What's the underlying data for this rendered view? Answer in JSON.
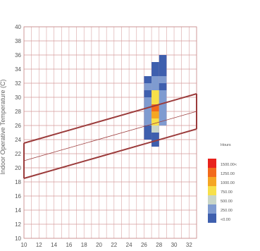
{
  "chart_data": {
    "type": "heatmap",
    "title": "",
    "xlabel": "",
    "ylabel": "Indoor Operative Temperature (C)",
    "xlim": [
      10,
      33
    ],
    "ylim": [
      10,
      40
    ],
    "x_ticks": [
      "10",
      "12",
      "14",
      "16",
      "18",
      "20",
      "22",
      "24",
      "26",
      "28",
      "30",
      "32"
    ],
    "y_ticks": [
      "10",
      "12",
      "14",
      "16",
      "18",
      "20",
      "22",
      "24",
      "26",
      "28",
      "30",
      "32",
      "34",
      "36",
      "38",
      "40"
    ],
    "grid": true,
    "legend": {
      "title": "Hours",
      "position": "bottom-right",
      "entries": [
        {
          "label": "1500.00<",
          "color": "#e8221c"
        },
        {
          "label": "1250.00",
          "color": "#f26a1b"
        },
        {
          "label": "1000.00",
          "color": "#f5a623"
        },
        {
          "label": "750.00",
          "color": "#f7e04a"
        },
        {
          "label": "500.00",
          "color": "#c9d6c8"
        },
        {
          "label": "250.00",
          "color": "#7f9bd0"
        },
        {
          "label": "<0.00",
          "color": "#3e5fae"
        }
      ]
    },
    "comfort_band": {
      "outer_lower": [
        [
          10,
          18.5
        ],
        [
          33,
          25.5
        ]
      ],
      "outer_upper": [
        [
          10,
          23.5
        ],
        [
          33,
          30.5
        ]
      ],
      "center_line": [
        [
          10,
          21
        ],
        [
          33,
          28
        ]
      ]
    },
    "cells": [
      {
        "x": 26,
        "y": 24,
        "v": 0
      },
      {
        "x": 26,
        "y": 25,
        "v": 0
      },
      {
        "x": 26,
        "y": 26,
        "v": 1
      },
      {
        "x": 26,
        "y": 27,
        "v": 1
      },
      {
        "x": 26,
        "y": 28,
        "v": 1
      },
      {
        "x": 26,
        "y": 29,
        "v": 1
      },
      {
        "x": 26,
        "y": 30,
        "v": 0
      },
      {
        "x": 26,
        "y": 31,
        "v": 1
      },
      {
        "x": 26,
        "y": 32,
        "v": 0
      },
      {
        "x": 27,
        "y": 23,
        "v": 0
      },
      {
        "x": 27,
        "y": 24,
        "v": 0
      },
      {
        "x": 27,
        "y": 25,
        "v": 2
      },
      {
        "x": 27,
        "y": 26,
        "v": 3
      },
      {
        "x": 27,
        "y": 27,
        "v": 4
      },
      {
        "x": 27,
        "y": 28,
        "v": 5
      },
      {
        "x": 27,
        "y": 29,
        "v": 3
      },
      {
        "x": 27,
        "y": 30,
        "v": 3
      },
      {
        "x": 27,
        "y": 31,
        "v": 1
      },
      {
        "x": 27,
        "y": 32,
        "v": 1
      },
      {
        "x": 27,
        "y": 33,
        "v": 0
      },
      {
        "x": 27,
        "y": 34,
        "v": 0
      },
      {
        "x": 28,
        "y": 26,
        "v": 1
      },
      {
        "x": 28,
        "y": 27,
        "v": 1
      },
      {
        "x": 28,
        "y": 28,
        "v": 1
      },
      {
        "x": 28,
        "y": 29,
        "v": 1
      },
      {
        "x": 28,
        "y": 30,
        "v": 1
      },
      {
        "x": 28,
        "y": 31,
        "v": 0
      },
      {
        "x": 28,
        "y": 32,
        "v": 1
      },
      {
        "x": 28,
        "y": 33,
        "v": 0
      },
      {
        "x": 28,
        "y": 34,
        "v": 0
      },
      {
        "x": 28,
        "y": 35,
        "v": 0
      }
    ]
  }
}
